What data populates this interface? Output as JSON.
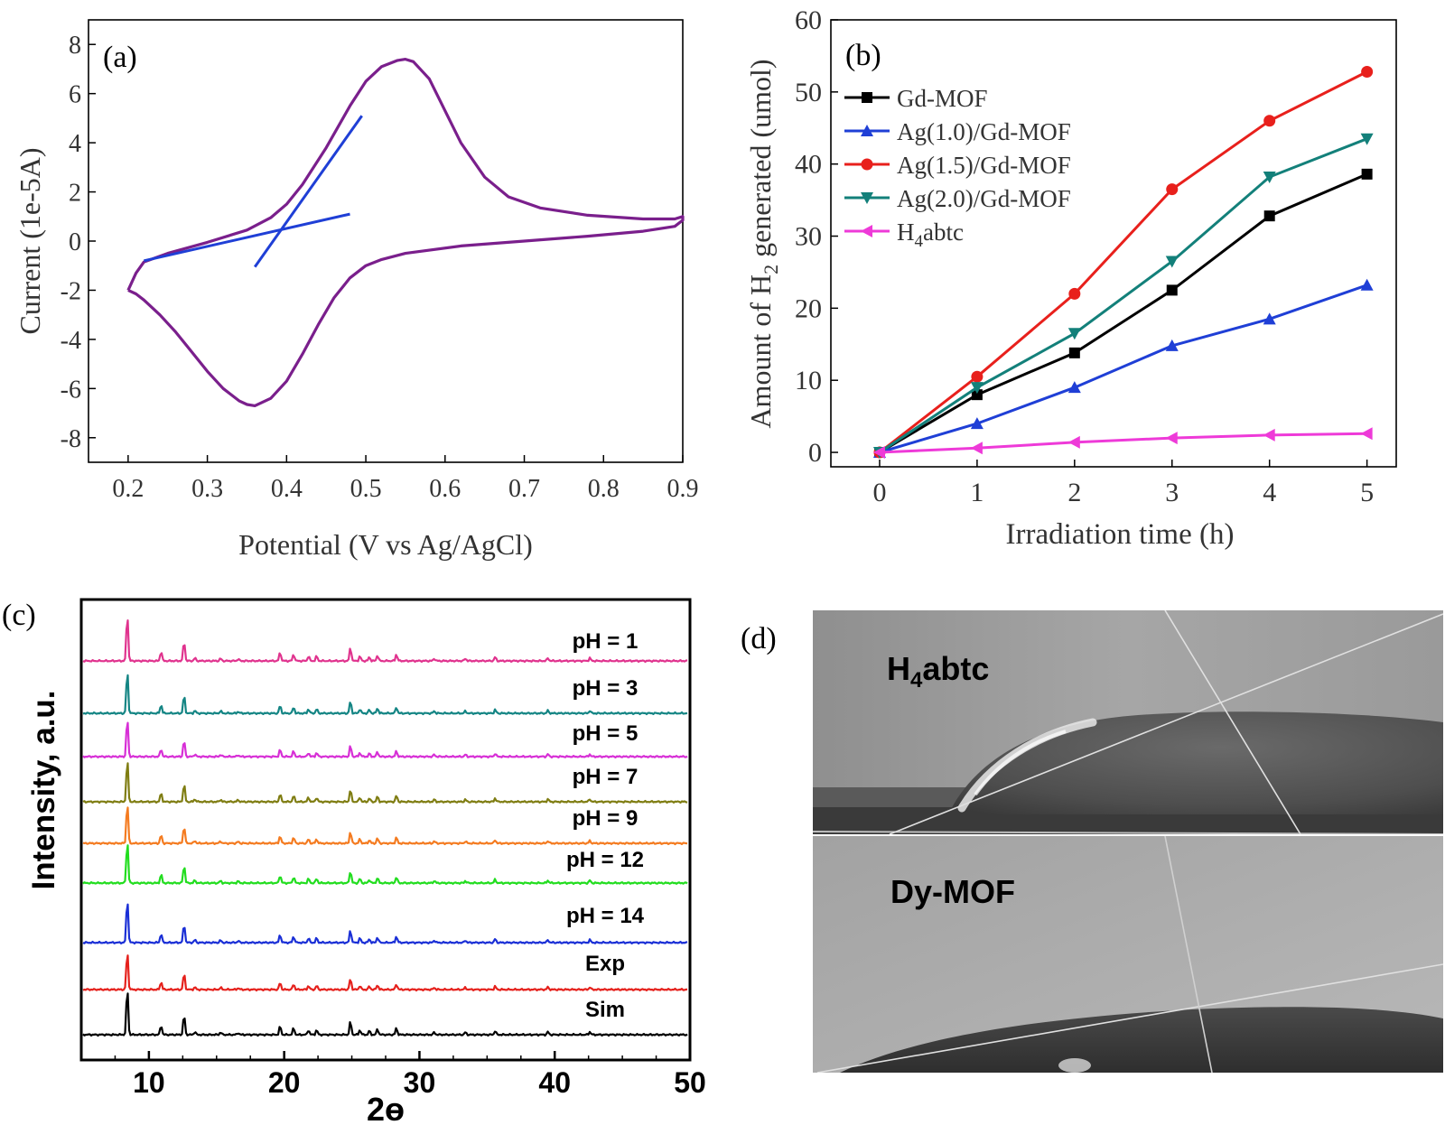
{
  "chart_data": [
    {
      "panel_label": "(a)",
      "type": "line",
      "xlabel": "Potential (V vs Ag/AgCl)",
      "ylabel": "Current (1e-5A)",
      "xlim": [
        0.15,
        0.9
      ],
      "ylim": [
        -9,
        9
      ],
      "xticks": [
        "0.2",
        "0.3",
        "0.4",
        "0.5",
        "0.6",
        "0.7",
        "0.8",
        "0.9"
      ],
      "yticks": [
        "-8",
        "-6",
        "-4",
        "-2",
        "0",
        "2",
        "4",
        "6",
        "8"
      ],
      "colors": {
        "cv": "#7a1f8c",
        "tangent": "#1f3fd6"
      },
      "curves": [
        {
          "role": "cv-loop",
          "x": [
            0.2,
            0.21,
            0.22,
            0.25,
            0.3,
            0.35,
            0.38,
            0.4,
            0.42,
            0.45,
            0.48,
            0.5,
            0.52,
            0.54,
            0.55,
            0.56,
            0.58,
            0.6,
            0.62,
            0.65,
            0.68,
            0.72,
            0.78,
            0.85,
            0.89,
            0.9,
            0.9,
            0.89,
            0.85,
            0.78,
            0.7,
            0.62,
            0.55,
            0.52,
            0.5,
            0.48,
            0.46,
            0.44,
            0.42,
            0.4,
            0.38,
            0.36,
            0.35,
            0.34,
            0.32,
            0.3,
            0.28,
            0.26,
            0.24,
            0.22,
            0.21,
            0.2
          ],
          "y": [
            -2.0,
            -1.3,
            -0.85,
            -0.5,
            -0.05,
            0.45,
            0.95,
            1.5,
            2.3,
            3.8,
            5.5,
            6.5,
            7.1,
            7.35,
            7.4,
            7.3,
            6.6,
            5.3,
            4.0,
            2.6,
            1.8,
            1.35,
            1.05,
            0.9,
            0.9,
            1.0,
            0.85,
            0.6,
            0.4,
            0.2,
            0.0,
            -0.2,
            -0.5,
            -0.75,
            -1.0,
            -1.5,
            -2.3,
            -3.4,
            -4.6,
            -5.7,
            -6.4,
            -6.7,
            -6.65,
            -6.5,
            -6.0,
            -5.3,
            -4.5,
            -3.7,
            -3.0,
            -2.4,
            -2.15,
            -2.0
          ]
        },
        {
          "role": "tangent",
          "x": [
            0.22,
            0.48
          ],
          "y": [
            -0.8,
            1.1
          ]
        },
        {
          "role": "tangent",
          "x": [
            0.36,
            0.495
          ],
          "y": [
            -1.05,
            5.1
          ]
        }
      ]
    },
    {
      "panel_label": "(b)",
      "type": "line",
      "xlabel": "Irradiation time (h)",
      "ylabel_parts": [
        "Amount of H",
        "2",
        " generated (umol)"
      ],
      "xlim": [
        -0.5,
        5.3
      ],
      "ylim": [
        -2,
        60
      ],
      "xticks": [
        "0",
        "1",
        "2",
        "3",
        "4",
        "5"
      ],
      "yticks": [
        "0",
        "10",
        "20",
        "30",
        "40",
        "50",
        "60"
      ],
      "legend_position": "top-left",
      "x": [
        0,
        1,
        2,
        3,
        4,
        5
      ],
      "series": [
        {
          "name": "Gd-MOF",
          "name_parts": [
            "Gd-MOF"
          ],
          "color": "#000000",
          "marker": "square",
          "values": [
            0,
            8,
            13.8,
            22.5,
            32.8,
            38.6
          ]
        },
        {
          "name": "Ag(1.0)/Gd-MOF",
          "name_parts": [
            "Ag(1.0)/Gd-MOF"
          ],
          "color": "#1f3fd6",
          "marker": "triangle-up",
          "values": [
            0,
            4,
            9,
            14.8,
            18.5,
            23.2
          ]
        },
        {
          "name": "Ag(1.5)/Gd-MOF",
          "name_parts": [
            "Ag(1.5)/Gd-MOF"
          ],
          "color": "#e8201c",
          "marker": "circle",
          "values": [
            0,
            10.5,
            22,
            36.5,
            46,
            52.8
          ]
        },
        {
          "name": "Ag(2.0)/Gd-MOF",
          "name_parts": [
            "Ag(2.0)/Gd-MOF"
          ],
          "color": "#13807a",
          "marker": "triangle-down",
          "values": [
            0,
            9,
            16.5,
            26.5,
            38.2,
            43.5
          ]
        },
        {
          "name": "H4abtc",
          "name_parts": [
            "H",
            "4",
            "abtc"
          ],
          "color": "#ee3ad8",
          "marker": "triangle-left",
          "values": [
            0,
            0.6,
            1.4,
            2,
            2.4,
            2.6
          ]
        }
      ]
    },
    {
      "panel_label": "(c)",
      "type": "line",
      "xlabel": "2ɵ",
      "ylabel": "Intensity, a.u.",
      "xlim": [
        5,
        50
      ],
      "xticks": [
        "10",
        "20",
        "30",
        "40",
        "50"
      ],
      "peaks": [
        {
          "pos": 8.4,
          "h": 1.0
        },
        {
          "pos": 10.9,
          "h": 0.2
        },
        {
          "pos": 12.6,
          "h": 0.42
        },
        {
          "pos": 13.4,
          "h": 0.06
        },
        {
          "pos": 15.3,
          "h": 0.05
        },
        {
          "pos": 16.6,
          "h": 0.04
        },
        {
          "pos": 19.7,
          "h": 0.18
        },
        {
          "pos": 20.7,
          "h": 0.14
        },
        {
          "pos": 21.8,
          "h": 0.1
        },
        {
          "pos": 22.4,
          "h": 0.1
        },
        {
          "pos": 24.9,
          "h": 0.28
        },
        {
          "pos": 25.6,
          "h": 0.1
        },
        {
          "pos": 26.3,
          "h": 0.08
        },
        {
          "pos": 26.9,
          "h": 0.12
        },
        {
          "pos": 28.3,
          "h": 0.14
        },
        {
          "pos": 31.1,
          "h": 0.05
        },
        {
          "pos": 33.4,
          "h": 0.05
        },
        {
          "pos": 35.6,
          "h": 0.08
        },
        {
          "pos": 39.5,
          "h": 0.06
        },
        {
          "pos": 42.6,
          "h": 0.06
        }
      ],
      "series": [
        {
          "name": "pH = 1",
          "color": "#e0338e",
          "scale": 55
        },
        {
          "name": "pH = 3",
          "color": "#148584",
          "scale": 50
        },
        {
          "name": "pH = 5",
          "color": "#d72fd6",
          "scale": 45
        },
        {
          "name": "pH = 7",
          "color": "#7f7d12",
          "scale": 50
        },
        {
          "name": "pH = 9",
          "color": "#f47b20",
          "scale": 48
        },
        {
          "name": "pH = 12",
          "color": "#22dd1f",
          "scale": 50
        },
        {
          "name": "pH = 14",
          "color": "#1a2fd6",
          "scale": 52
        },
        {
          "name": "Exp",
          "color": "#e5211c",
          "scale": 45
        },
        {
          "name": "Sim",
          "color": "#000000",
          "scale": 55
        }
      ]
    }
  ],
  "panel_d": {
    "label": "(d)",
    "top_caption_parts": [
      "H",
      "4",
      "abtc"
    ],
    "bottom_caption": "Dy-MOF"
  }
}
